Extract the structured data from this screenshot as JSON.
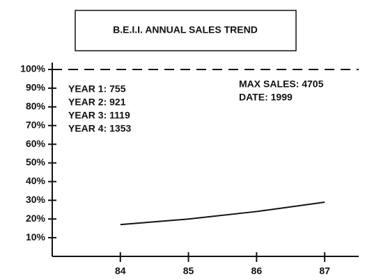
{
  "chart_data": {
    "type": "line",
    "title": "B.E.I.I. ANNUAL SALES TREND",
    "annotations": [
      "YEAR 1: 755",
      "YEAR 2: 921",
      "YEAR 3: 1119",
      "YEAR 4: 1353"
    ],
    "annotations_right": [
      "MAX SALES: 4705",
      "DATE: 1999"
    ],
    "x": [
      84,
      85,
      86,
      87
    ],
    "series": [
      {
        "color": "#111111",
        "values": [
          17,
          20,
          24,
          29
        ]
      }
    ],
    "xlim": [
      83,
      87.5
    ],
    "xticks": [
      84,
      85,
      86,
      87
    ],
    "ylim": [
      0,
      100
    ],
    "yticks": [
      {
        "value": 10,
        "label": "10%"
      },
      {
        "value": 20,
        "label": "20%"
      },
      {
        "value": 30,
        "label": "30%"
      },
      {
        "value": 40,
        "label": "40%"
      },
      {
        "value": 50,
        "label": "50%"
      },
      {
        "value": 60,
        "label": "60%"
      },
      {
        "value": 70,
        "label": "70%"
      },
      {
        "value": 80,
        "label": "80%"
      },
      {
        "value": 90,
        "label": "90%"
      },
      {
        "value": 100,
        "label": "100%"
      }
    ],
    "grid": false
  }
}
